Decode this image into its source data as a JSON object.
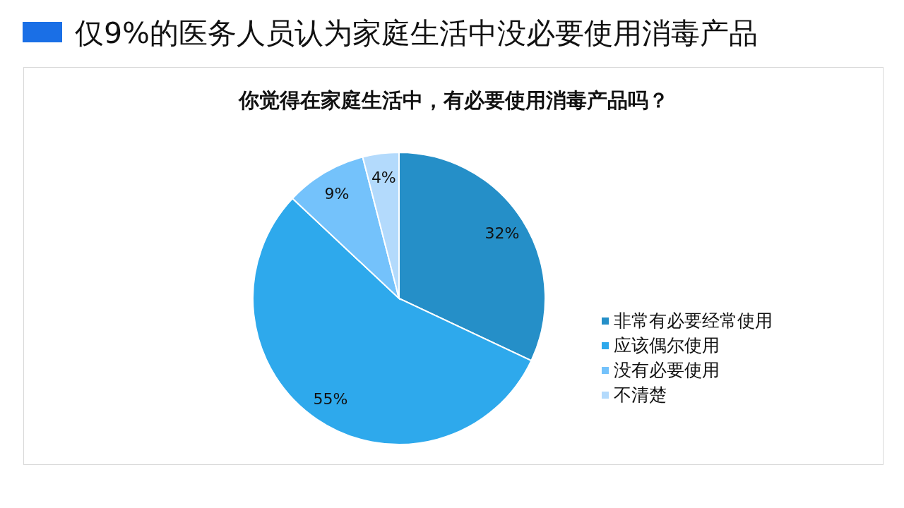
{
  "chart_data": {
    "type": "pie",
    "title": "仅9%的医务人员认为家庭生活中没必要使用消毒产品",
    "subtitle": "你觉得在家庭生活中，有必要使用消毒产品吗？",
    "categories": [
      "非常有必要经常使用",
      "应该偶尔使用",
      "没有必要使用",
      "不清楚"
    ],
    "values": [
      32,
      55,
      9,
      4
    ],
    "colors": [
      "#258fc8",
      "#2ea9ec",
      "#74c2fb",
      "#b3dafc"
    ],
    "value_labels": [
      "32%",
      "55%",
      "9%",
      "4%"
    ],
    "legend": "right"
  }
}
